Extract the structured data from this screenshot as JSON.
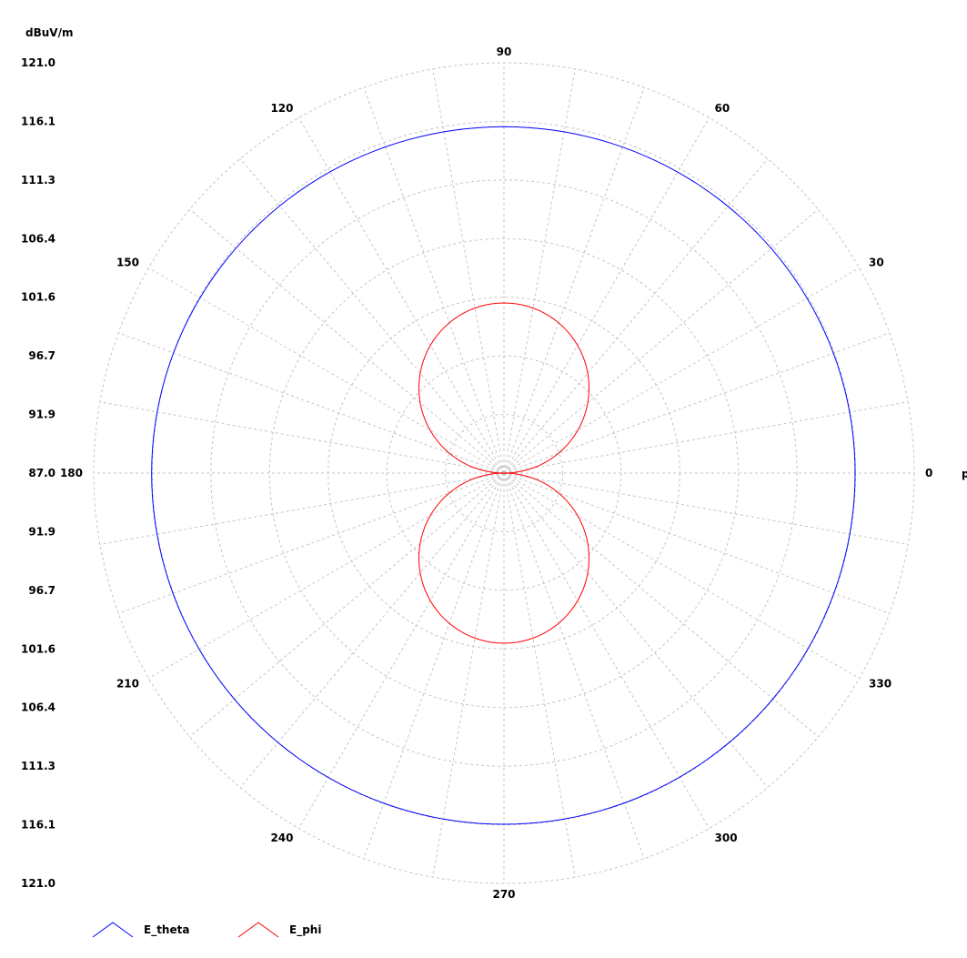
{
  "chart_data": {
    "type": "polar-line",
    "unit_label": "dBuV/m",
    "angle_axis_label": "phi",
    "radial_axis": {
      "min": 87.0,
      "max": 121.0,
      "labels": [
        "121.0",
        "116.1",
        "111.3",
        "106.4",
        "101.6",
        "96.7",
        "91.9",
        "87.0",
        "91.9",
        "96.7",
        "101.6",
        "106.4",
        "111.3",
        "116.1",
        "121.0"
      ]
    },
    "angle_ticks": [
      "0",
      "30",
      "60",
      "90",
      "120",
      "150",
      "180",
      "210",
      "240",
      "270",
      "300",
      "330"
    ],
    "grid": true,
    "legend_position": "bottom-left",
    "series": [
      {
        "name": "E_theta",
        "color": "#0000ff",
        "description_points": [
          {
            "phi": 0,
            "value": 116.1
          },
          {
            "phi": 90,
            "value": 115.7
          },
          {
            "phi": 180,
            "value": 116.2
          },
          {
            "phi": 270,
            "value": 116.1
          }
        ]
      },
      {
        "name": "E_phi",
        "color": "#ff0000",
        "peak": 101.1,
        "null_angles": [
          0,
          180
        ]
      }
    ]
  }
}
